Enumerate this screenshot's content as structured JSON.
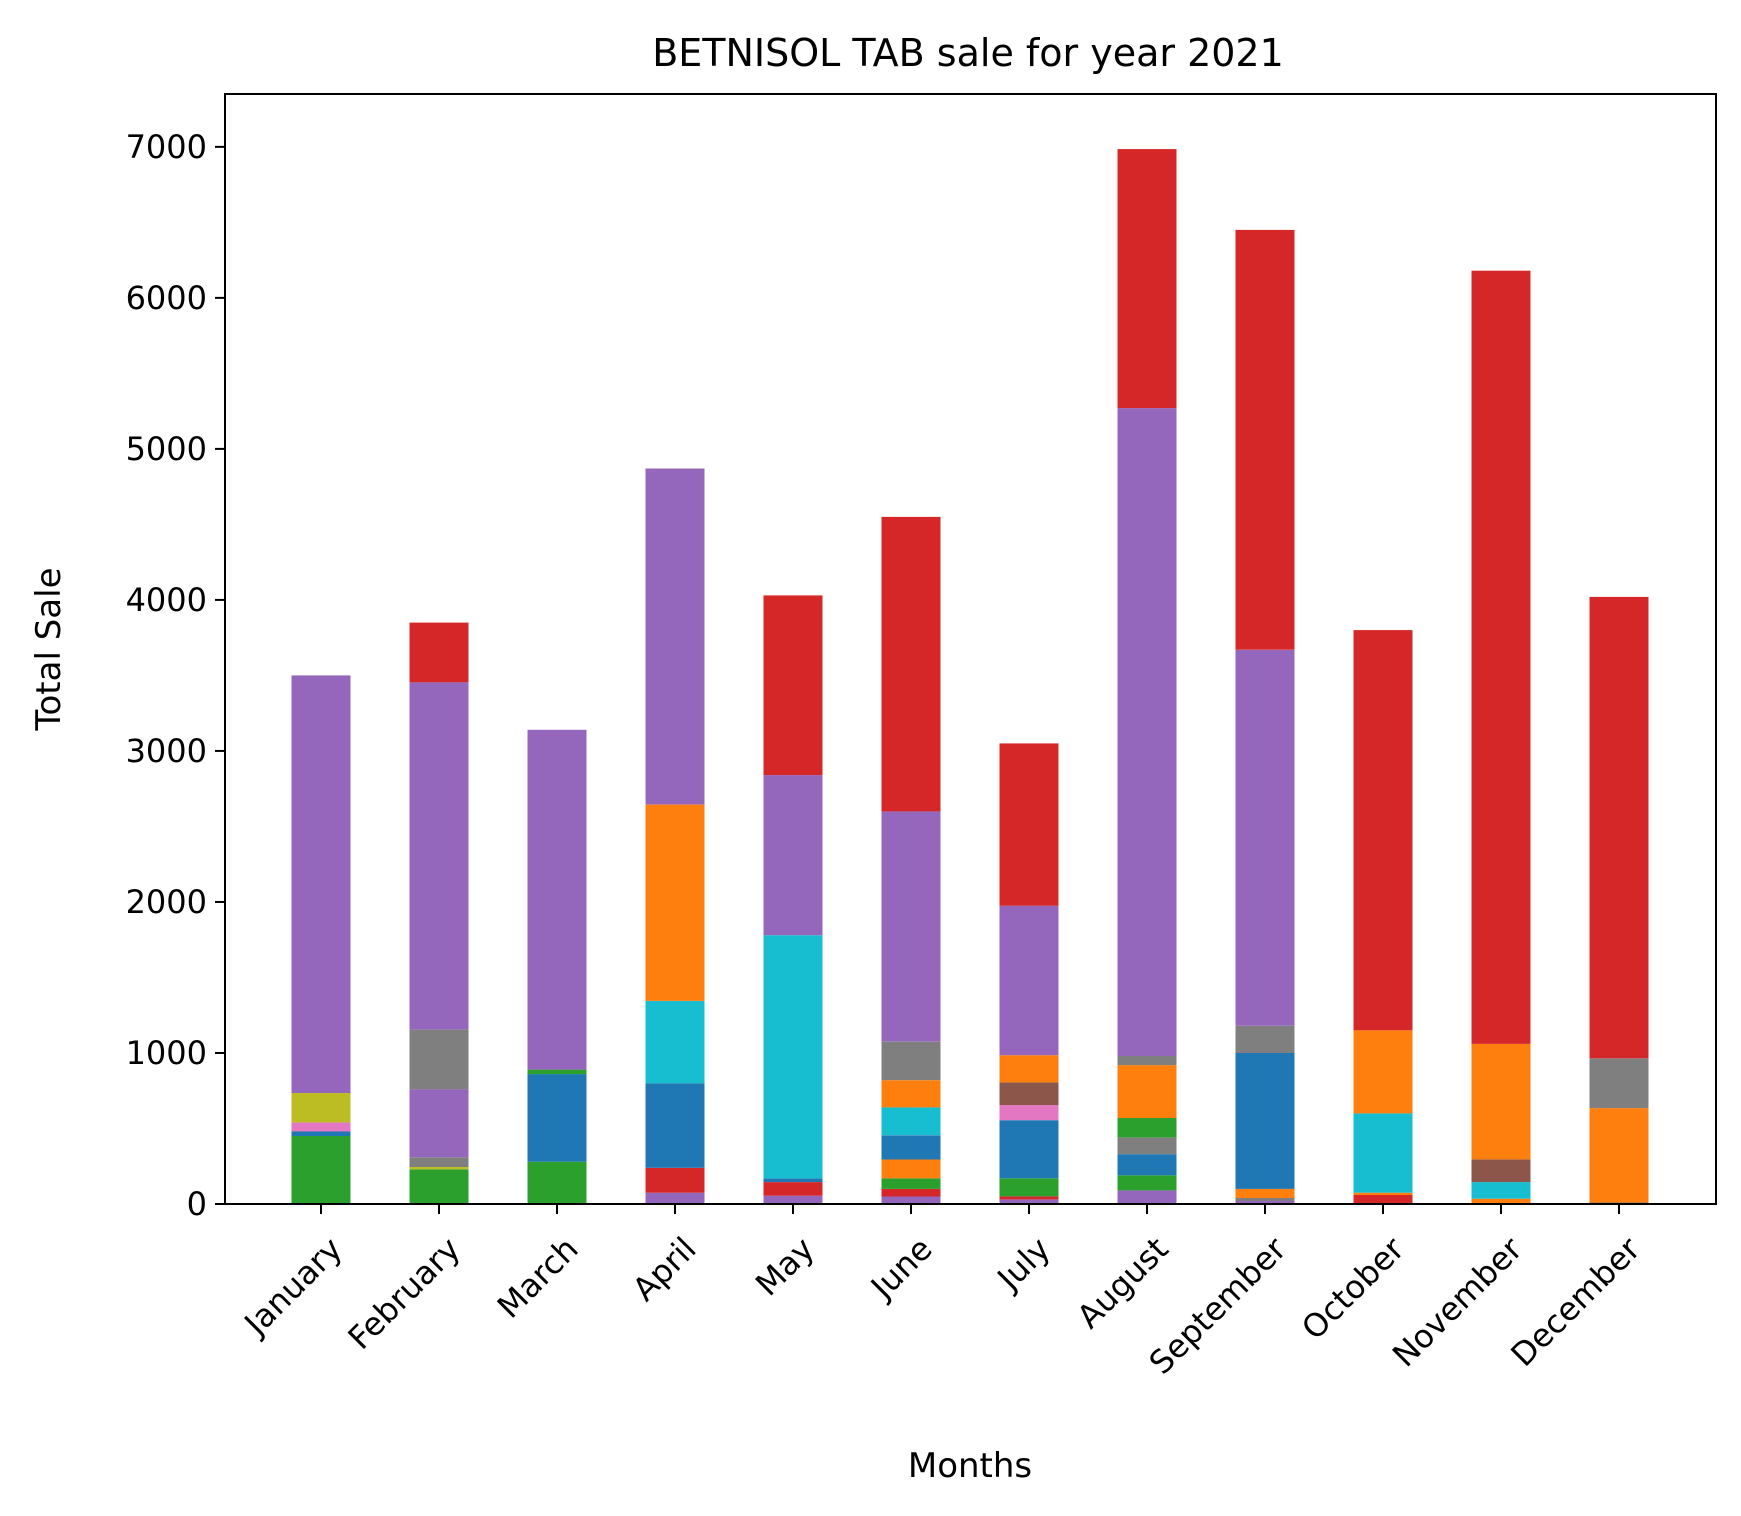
{
  "chart_data": {
    "type": "bar",
    "stacked": true,
    "title": "BETNISOL TAB sale for year 2021",
    "xlabel": "Months",
    "ylabel": "Total Sale",
    "ylim": [
      0,
      7350
    ],
    "yticks": [
      0,
      1000,
      2000,
      3000,
      4000,
      5000,
      6000,
      7000
    ],
    "grid": false,
    "legend": "none",
    "categories": [
      "January",
      "February",
      "March",
      "April",
      "May",
      "June",
      "July",
      "August",
      "September",
      "October",
      "November",
      "December"
    ],
    "stacks": [
      [
        {
          "value": 450,
          "color": "#2ca02c"
        },
        {
          "value": 30,
          "color": "#1f77b4"
        },
        {
          "value": 60,
          "color": "#e377c2"
        },
        {
          "value": 195,
          "color": "#bcbd22"
        },
        {
          "value": 2765,
          "color": "#9467bd"
        }
      ],
      [
        {
          "value": 230,
          "color": "#2ca02c"
        },
        {
          "value": 15,
          "color": "#bcbd22"
        },
        {
          "value": 65,
          "color": "#7f7f7f"
        },
        {
          "value": 450,
          "color": "#9467bd"
        },
        {
          "value": 395,
          "color": "#7f7f7f"
        },
        {
          "value": 2300,
          "color": "#9467bd"
        },
        {
          "value": 395,
          "color": "#d62728"
        }
      ],
      [
        {
          "value": 280,
          "color": "#2ca02c"
        },
        {
          "value": 580,
          "color": "#1f77b4"
        },
        {
          "value": 30,
          "color": "#2ca02c"
        },
        {
          "value": 2250,
          "color": "#9467bd"
        }
      ],
      [
        {
          "value": 75,
          "color": "#9467bd"
        },
        {
          "value": 165,
          "color": "#d62728"
        },
        {
          "value": 560,
          "color": "#1f77b4"
        },
        {
          "value": 545,
          "color": "#17becf"
        },
        {
          "value": 1300,
          "color": "#ff7f0e"
        },
        {
          "value": 2225,
          "color": "#9467bd"
        }
      ],
      [
        {
          "value": 55,
          "color": "#9467bd"
        },
        {
          "value": 90,
          "color": "#d62728"
        },
        {
          "value": 25,
          "color": "#1f77b4"
        },
        {
          "value": 1610,
          "color": "#17becf"
        },
        {
          "value": 1060,
          "color": "#9467bd"
        },
        {
          "value": 1190,
          "color": "#d62728"
        }
      ],
      [
        {
          "value": 50,
          "color": "#9467bd"
        },
        {
          "value": 50,
          "color": "#d62728"
        },
        {
          "value": 70,
          "color": "#2ca02c"
        },
        {
          "value": 125,
          "color": "#ff7f0e"
        },
        {
          "value": 160,
          "color": "#1f77b4"
        },
        {
          "value": 185,
          "color": "#17becf"
        },
        {
          "value": 180,
          "color": "#ff7f0e"
        },
        {
          "value": 255,
          "color": "#7f7f7f"
        },
        {
          "value": 1525,
          "color": "#9467bd"
        },
        {
          "value": 1950,
          "color": "#d62728"
        }
      ],
      [
        {
          "value": 30,
          "color": "#9467bd"
        },
        {
          "value": 20,
          "color": "#d62728"
        },
        {
          "value": 120,
          "color": "#2ca02c"
        },
        {
          "value": 385,
          "color": "#1f77b4"
        },
        {
          "value": 100,
          "color": "#e377c2"
        },
        {
          "value": 150,
          "color": "#8c564b"
        },
        {
          "value": 180,
          "color": "#ff7f0e"
        },
        {
          "value": 990,
          "color": "#9467bd"
        },
        {
          "value": 1075,
          "color": "#d62728"
        }
      ],
      [
        {
          "value": 90,
          "color": "#9467bd"
        },
        {
          "value": 100,
          "color": "#2ca02c"
        },
        {
          "value": 140,
          "color": "#1f77b4"
        },
        {
          "value": 110,
          "color": "#7f7f7f"
        },
        {
          "value": 130,
          "color": "#2ca02c"
        },
        {
          "value": 350,
          "color": "#ff7f0e"
        },
        {
          "value": 60,
          "color": "#7f7f7f"
        },
        {
          "value": 4290,
          "color": "#9467bd"
        },
        {
          "value": 1715,
          "color": "#d62728"
        }
      ],
      [
        {
          "value": 20,
          "color": "#9467bd"
        },
        {
          "value": 20,
          "color": "#7f7f7f"
        },
        {
          "value": 60,
          "color": "#ff7f0e"
        },
        {
          "value": 900,
          "color": "#1f77b4"
        },
        {
          "value": 180,
          "color": "#7f7f7f"
        },
        {
          "value": 2490,
          "color": "#9467bd"
        },
        {
          "value": 2780,
          "color": "#d62728"
        }
      ],
      [
        {
          "value": 60,
          "color": "#d62728"
        },
        {
          "value": 15,
          "color": "#ff7f0e"
        },
        {
          "value": 525,
          "color": "#17becf"
        },
        {
          "value": 550,
          "color": "#ff7f0e"
        },
        {
          "value": 2650,
          "color": "#d62728"
        }
      ],
      [
        {
          "value": 35,
          "color": "#ff7f0e"
        },
        {
          "value": 110,
          "color": "#17becf"
        },
        {
          "value": 150,
          "color": "#8c564b"
        },
        {
          "value": 765,
          "color": "#ff7f0e"
        },
        {
          "value": 5120,
          "color": "#d62728"
        }
      ],
      [
        {
          "value": 10,
          "color": "#7f7f7f"
        },
        {
          "value": 625,
          "color": "#ff7f0e"
        },
        {
          "value": 330,
          "color": "#7f7f7f"
        },
        {
          "value": 3055,
          "color": "#d62728"
        }
      ]
    ]
  }
}
